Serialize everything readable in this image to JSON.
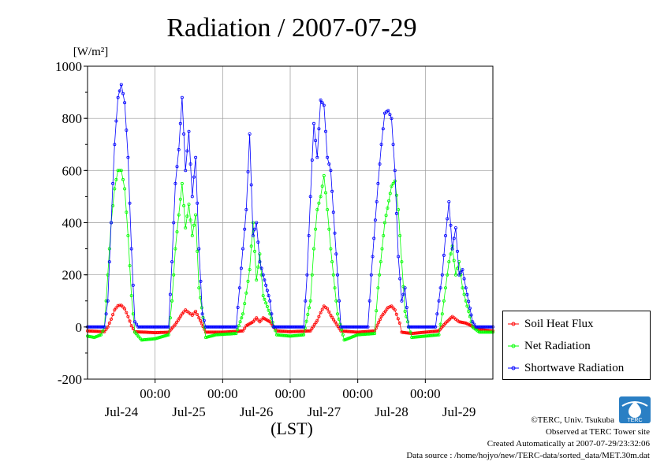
{
  "chart_data": {
    "type": "line",
    "title": "Radiation / 2007-07-29",
    "unit_label": "[W/m²]",
    "xlabel": "(LST)",
    "ylim": [
      -200,
      1000
    ],
    "yticks": [
      -200,
      0,
      200,
      400,
      600,
      800,
      1000
    ],
    "xlim": [
      0,
      6
    ],
    "xtick_positions": [
      1,
      2,
      3,
      4,
      5
    ],
    "xtick_time_labels": [
      "00:00",
      "00:00",
      "00:00",
      "00:00",
      "00:00"
    ],
    "date_label_positions": [
      0.5,
      1.5,
      2.5,
      3.5,
      4.5,
      5.5
    ],
    "date_labels": [
      "Jul-24",
      "Jul-25",
      "Jul-26",
      "Jul-27",
      "Jul-28",
      "Jul-29"
    ],
    "grid": true,
    "legend_position": "right",
    "series": [
      {
        "name": "Soil Heat Flux",
        "color": "#ff0000",
        "points": [
          [
            0.0,
            -15
          ],
          [
            0.25,
            -18
          ],
          [
            0.3,
            0
          ],
          [
            0.35,
            30
          ],
          [
            0.4,
            65
          ],
          [
            0.45,
            82
          ],
          [
            0.5,
            83
          ],
          [
            0.55,
            70
          ],
          [
            0.6,
            40
          ],
          [
            0.65,
            5
          ],
          [
            0.7,
            -18
          ],
          [
            1.0,
            -22
          ],
          [
            1.2,
            -20
          ],
          [
            1.3,
            10
          ],
          [
            1.4,
            50
          ],
          [
            1.45,
            65
          ],
          [
            1.5,
            55
          ],
          [
            1.55,
            45
          ],
          [
            1.6,
            60
          ],
          [
            1.65,
            35
          ],
          [
            1.75,
            -20
          ],
          [
            2.0,
            -20
          ],
          [
            2.3,
            -15
          ],
          [
            2.35,
            5
          ],
          [
            2.45,
            20
          ],
          [
            2.5,
            35
          ],
          [
            2.55,
            20
          ],
          [
            2.6,
            35
          ],
          [
            2.7,
            20
          ],
          [
            2.8,
            -15
          ],
          [
            3.0,
            -18
          ],
          [
            3.3,
            -15
          ],
          [
            3.4,
            25
          ],
          [
            3.45,
            55
          ],
          [
            3.5,
            80
          ],
          [
            3.55,
            70
          ],
          [
            3.6,
            45
          ],
          [
            3.75,
            -15
          ],
          [
            4.0,
            -20
          ],
          [
            4.25,
            -15
          ],
          [
            4.35,
            40
          ],
          [
            4.45,
            75
          ],
          [
            4.5,
            80
          ],
          [
            4.55,
            65
          ],
          [
            4.62,
            15
          ],
          [
            4.65,
            -20
          ],
          [
            4.8,
            -25
          ],
          [
            5.0,
            -20
          ],
          [
            5.2,
            -15
          ],
          [
            5.3,
            15
          ],
          [
            5.4,
            40
          ],
          [
            5.45,
            30
          ],
          [
            5.5,
            20
          ],
          [
            5.6,
            15
          ],
          [
            5.8,
            -10
          ],
          [
            6.0,
            -15
          ]
        ]
      },
      {
        "name": "Net Radiation",
        "color": "#00ff00",
        "points": [
          [
            0.0,
            -35
          ],
          [
            0.1,
            -40
          ],
          [
            0.2,
            -30
          ],
          [
            0.25,
            0
          ],
          [
            0.3,
            200
          ],
          [
            0.35,
            400
          ],
          [
            0.4,
            530
          ],
          [
            0.45,
            600
          ],
          [
            0.5,
            600
          ],
          [
            0.55,
            530
          ],
          [
            0.6,
            350
          ],
          [
            0.65,
            120
          ],
          [
            0.7,
            -20
          ],
          [
            0.8,
            -50
          ],
          [
            1.0,
            -45
          ],
          [
            1.2,
            -30
          ],
          [
            1.25,
            100
          ],
          [
            1.3,
            300
          ],
          [
            1.35,
            430
          ],
          [
            1.4,
            550
          ],
          [
            1.45,
            380
          ],
          [
            1.5,
            470
          ],
          [
            1.55,
            350
          ],
          [
            1.6,
            430
          ],
          [
            1.65,
            150
          ],
          [
            1.75,
            -40
          ],
          [
            1.9,
            -30
          ],
          [
            2.2,
            -25
          ],
          [
            2.3,
            50
          ],
          [
            2.35,
            130
          ],
          [
            2.4,
            220
          ],
          [
            2.45,
            400
          ],
          [
            2.5,
            180
          ],
          [
            2.55,
            280
          ],
          [
            2.6,
            120
          ],
          [
            2.7,
            50
          ],
          [
            2.8,
            -30
          ],
          [
            3.0,
            -35
          ],
          [
            3.2,
            -30
          ],
          [
            3.3,
            100
          ],
          [
            3.35,
            300
          ],
          [
            3.4,
            450
          ],
          [
            3.45,
            500
          ],
          [
            3.5,
            580
          ],
          [
            3.55,
            450
          ],
          [
            3.6,
            300
          ],
          [
            3.7,
            50
          ],
          [
            3.8,
            -50
          ],
          [
            4.0,
            -30
          ],
          [
            4.25,
            -25
          ],
          [
            4.3,
            150
          ],
          [
            4.4,
            400
          ],
          [
            4.5,
            540
          ],
          [
            4.55,
            560
          ],
          [
            4.6,
            450
          ],
          [
            4.65,
            250
          ],
          [
            4.7,
            60
          ],
          [
            4.8,
            -40
          ],
          [
            5.0,
            -35
          ],
          [
            5.2,
            -30
          ],
          [
            5.25,
            50
          ],
          [
            5.3,
            150
          ],
          [
            5.35,
            250
          ],
          [
            5.4,
            310
          ],
          [
            5.45,
            200
          ],
          [
            5.5,
            250
          ],
          [
            5.55,
            150
          ],
          [
            5.6,
            100
          ],
          [
            5.7,
            0
          ],
          [
            5.8,
            -20
          ],
          [
            6.0,
            -20
          ]
        ]
      },
      {
        "name": "Shortwave Radiation",
        "color": "#0000ff",
        "points": [
          [
            0.0,
            0
          ],
          [
            0.25,
            0
          ],
          [
            0.3,
            100
          ],
          [
            0.35,
            400
          ],
          [
            0.4,
            700
          ],
          [
            0.45,
            880
          ],
          [
            0.5,
            930
          ],
          [
            0.55,
            860
          ],
          [
            0.6,
            650
          ],
          [
            0.65,
            300
          ],
          [
            0.7,
            20
          ],
          [
            0.75,
            0
          ],
          [
            1.2,
            0
          ],
          [
            1.25,
            250
          ],
          [
            1.3,
            550
          ],
          [
            1.35,
            680
          ],
          [
            1.4,
            880
          ],
          [
            1.45,
            600
          ],
          [
            1.5,
            750
          ],
          [
            1.55,
            500
          ],
          [
            1.6,
            650
          ],
          [
            1.65,
            300
          ],
          [
            1.7,
            50
          ],
          [
            1.75,
            0
          ],
          [
            2.2,
            0
          ],
          [
            2.25,
            150
          ],
          [
            2.3,
            300
          ],
          [
            2.35,
            450
          ],
          [
            2.4,
            740
          ],
          [
            2.45,
            350
          ],
          [
            2.5,
            400
          ],
          [
            2.55,
            250
          ],
          [
            2.6,
            200
          ],
          [
            2.7,
            100
          ],
          [
            2.75,
            0
          ],
          [
            3.2,
            0
          ],
          [
            3.25,
            200
          ],
          [
            3.3,
            500
          ],
          [
            3.35,
            780
          ],
          [
            3.4,
            650
          ],
          [
            3.45,
            870
          ],
          [
            3.5,
            850
          ],
          [
            3.55,
            650
          ],
          [
            3.6,
            600
          ],
          [
            3.7,
            200
          ],
          [
            3.75,
            0
          ],
          [
            4.15,
            0
          ],
          [
            4.2,
            200
          ],
          [
            4.3,
            550
          ],
          [
            4.35,
            700
          ],
          [
            4.4,
            820
          ],
          [
            4.45,
            830
          ],
          [
            4.5,
            800
          ],
          [
            4.55,
            600
          ],
          [
            4.6,
            270
          ],
          [
            4.65,
            100
          ],
          [
            4.7,
            150
          ],
          [
            4.75,
            0
          ],
          [
            5.15,
            0
          ],
          [
            5.2,
            100
          ],
          [
            5.25,
            200
          ],
          [
            5.3,
            350
          ],
          [
            5.35,
            480
          ],
          [
            5.4,
            300
          ],
          [
            5.45,
            380
          ],
          [
            5.5,
            200
          ],
          [
            5.55,
            220
          ],
          [
            5.6,
            150
          ],
          [
            5.7,
            20
          ],
          [
            5.75,
            0
          ],
          [
            6.0,
            0
          ]
        ]
      }
    ]
  },
  "credits": {
    "copyright": "©TERC, Univ. Tsukuba",
    "observed": "Observed at TERC Tower site",
    "created": "Created Automatically at 2007-07-29/23:32:06",
    "source": "Data source : /home/hojyo/new/TERC-data/sorted_data/MET.30m.dat"
  },
  "logo": {
    "text": "TERC"
  }
}
